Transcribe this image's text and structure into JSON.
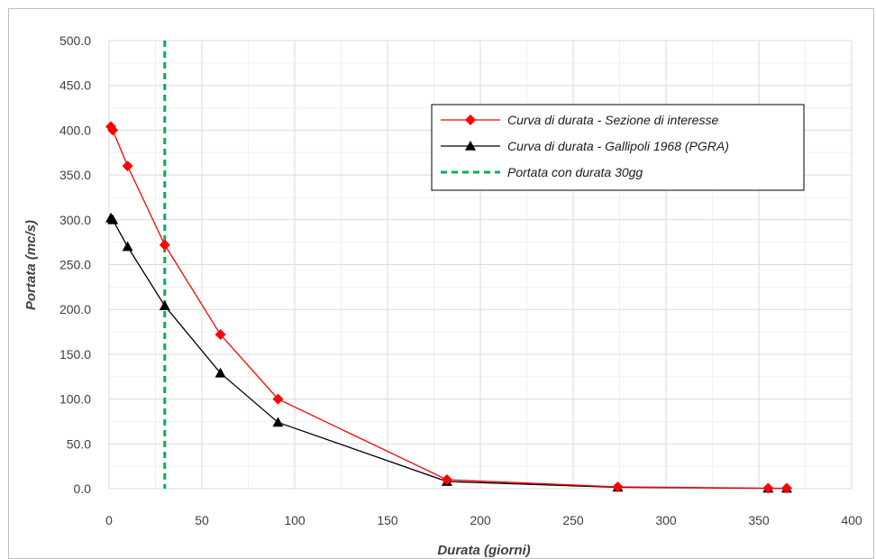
{
  "chart_data": {
    "type": "line",
    "xlabel": "Durata (giorni)",
    "ylabel": "Portata (mc/s)",
    "xlim": [
      0,
      400
    ],
    "ylim": [
      0,
      500
    ],
    "x_ticks": [
      "0",
      "50",
      "100",
      "150",
      "200",
      "250",
      "300",
      "350",
      "400"
    ],
    "y_ticks": [
      "0.0",
      "50.0",
      "100.0",
      "150.0",
      "200.0",
      "250.0",
      "300.0",
      "350.0",
      "400.0",
      "450.0",
      "500.0"
    ],
    "grid": true,
    "legend_position": "top-right",
    "series": [
      {
        "name": "Curva di durata  - Sezione di interesse",
        "color": "#ff0000",
        "marker": "diamond",
        "x": [
          1,
          2,
          10,
          30,
          60,
          91,
          182,
          274,
          355,
          365
        ],
        "y": [
          404,
          400,
          360,
          272,
          172,
          100,
          10,
          2,
          0.5,
          0.5
        ]
      },
      {
        "name": "Curva di durata  - Gallipoli 1968 (PGRA)",
        "color": "#000000",
        "marker": "triangle",
        "x": [
          1,
          2,
          10,
          30,
          60,
          91,
          182,
          274,
          355,
          365
        ],
        "y": [
          302,
          300,
          270,
          204,
          129,
          74,
          8,
          1.5,
          0.4,
          0.4
        ]
      }
    ],
    "vertical_line": {
      "name": "Portata con durata 30gg",
      "x": 30,
      "color": "#00b050"
    }
  }
}
